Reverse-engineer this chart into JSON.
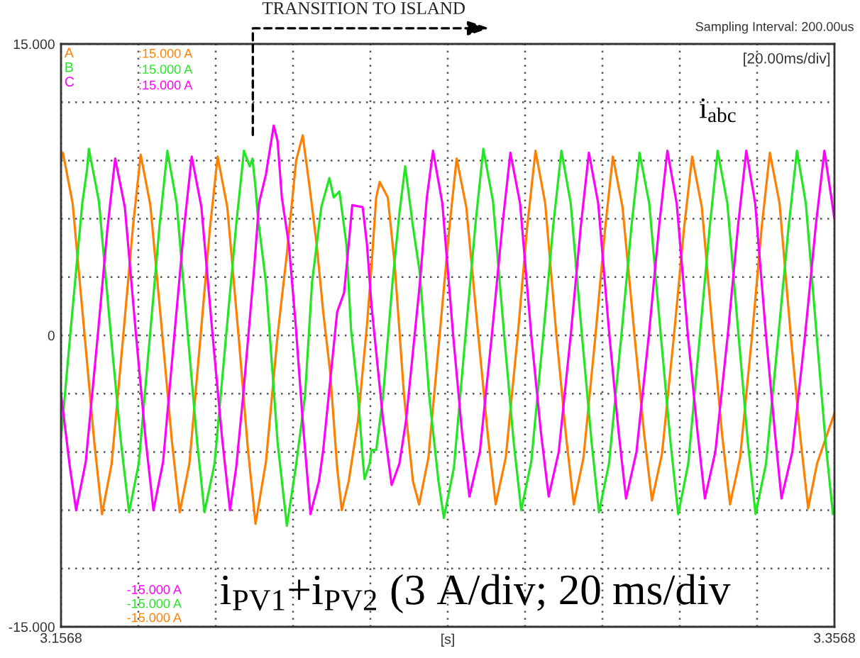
{
  "chart_data": {
    "type": "line",
    "xlabel": "[s]",
    "xlim": [
      3.1568,
      3.3568
    ],
    "xticks": [
      3.1568,
      {
        "value": 3.1768,
        "label": null
      },
      {
        "value": 3.1968,
        "label": null
      },
      {
        "value": 3.2168,
        "label": null
      },
      {
        "value": 3.2368,
        "label": null
      },
      {
        "value": 3.2568,
        "label": null
      },
      {
        "value": 3.2768,
        "label": null
      },
      {
        "value": 3.2968,
        "label": null
      },
      {
        "value": 3.3168,
        "label": null
      },
      {
        "value": 3.3368,
        "label": null
      },
      3.3568
    ],
    "ylim": [
      -15,
      15
    ],
    "yticks": [
      {
        "value": -15,
        "label": "-15.000"
      },
      {
        "value": -12,
        "label": null
      },
      {
        "value": -9,
        "label": null
      },
      {
        "value": -6,
        "label": null
      },
      {
        "value": -3,
        "label": null
      },
      0,
      {
        "value": 3,
        "label": null
      },
      {
        "value": 6,
        "label": null
      },
      {
        "value": 9,
        "label": null
      },
      {
        "value": 12,
        "label": null
      },
      {
        "value": 15,
        "label": "15.000"
      }
    ],
    "grid": true,
    "legend": "top left",
    "annotations": [
      "TRANSITION TO ISLAND",
      "Sampling Interval: 200.00us",
      "[20.00ms/div]",
      "i$_{abc}$",
      "i$_{PV1}$+i$_{PV2}$ (3 A/div; 20 ms/div",
      ":15.000 A",
      ":15.000 A",
      ":15.000 A",
      "-15.000 A",
      "-15.000 A",
      "-15.000 A"
    ],
    "series": [
      {
        "name": "A",
        "color": "#ff8000",
        "x": [
          3.1568,
          3.1573,
          3.1598,
          3.1629,
          3.1654,
          3.1674,
          3.1699,
          3.1729,
          3.1754,
          3.1774,
          3.1799,
          3.183,
          3.1855,
          3.1875,
          3.19,
          3.1929,
          3.1953,
          3.1973,
          3.1998,
          3.2027,
          3.2051,
          3.2071,
          3.2098,
          3.2128,
          3.2152,
          3.2176,
          3.2193,
          3.2211,
          3.2229,
          3.2246,
          3.2264,
          3.2282,
          3.2294,
          3.2312,
          3.2336,
          3.2359,
          3.2371,
          3.2383,
          3.2392,
          3.2413,
          3.2431,
          3.2455,
          3.2478,
          3.2494,
          3.2518,
          3.2547,
          3.2572,
          3.2591,
          3.2616,
          3.2647,
          3.2672,
          3.2692,
          3.2718,
          3.2749,
          3.2774,
          3.2795,
          3.282,
          3.2849,
          3.2874,
          3.2894,
          3.2919,
          3.295,
          3.2975,
          3.2995,
          3.302,
          3.3051,
          3.3076,
          3.3096,
          3.3122,
          3.3153,
          3.3179,
          3.32,
          3.3225,
          3.3254,
          3.3278,
          3.3298,
          3.3324,
          3.3355,
          3.338,
          3.3401,
          3.3426,
          3.3455,
          3.348,
          3.35,
          3.3523,
          3.3568
        ],
        "values": [
          9.0,
          9.4,
          6.8,
          0.0,
          -5.5,
          -9.2,
          -6.6,
          0.0,
          5.6,
          9.3,
          6.7,
          0.0,
          -5.5,
          -9.1,
          -6.6,
          0.0,
          5.5,
          9.2,
          6.6,
          0.0,
          -5.8,
          -9.7,
          -6.5,
          0.0,
          4.2,
          9.0,
          10.3,
          7.6,
          4.7,
          1.2,
          -1.9,
          -6.8,
          -9.0,
          -7.5,
          -4.4,
          0.5,
          3.6,
          7.1,
          7.9,
          7.1,
          3.6,
          -3.1,
          -7.5,
          -8.7,
          -6.3,
          0.0,
          5.5,
          9.1,
          6.6,
          0.0,
          -5.2,
          -8.7,
          -6.3,
          0.0,
          5.7,
          9.5,
          6.8,
          0.0,
          -5.2,
          -8.7,
          -6.3,
          0.0,
          5.5,
          9.2,
          6.6,
          0.0,
          -5.1,
          -8.5,
          -6.1,
          0.0,
          5.5,
          9.2,
          6.6,
          0.0,
          -5.2,
          -8.7,
          -6.3,
          0.0,
          5.6,
          9.4,
          6.8,
          0.0,
          -5.3,
          -8.9,
          -6.6,
          -4.0
        ]
      },
      {
        "name": "B",
        "color": "#22e622",
        "x": [
          3.1568,
          3.1593,
          3.1611,
          3.1623,
          3.1635,
          3.164,
          3.1666,
          3.1697,
          3.1723,
          3.1744,
          3.1769,
          3.1798,
          3.1823,
          3.1843,
          3.1867,
          3.1896,
          3.192,
          3.1939,
          3.1965,
          3.1995,
          3.2021,
          3.2041,
          3.2056,
          3.2063,
          3.2071,
          3.2077,
          3.2098,
          3.2128,
          3.2152,
          3.2175,
          3.2199,
          3.2217,
          3.2241,
          3.2262,
          3.2273,
          3.2288,
          3.2306,
          3.2318,
          3.2336,
          3.2348,
          3.2353,
          3.2366,
          3.2371,
          3.2383,
          3.2401,
          3.2425,
          3.2443,
          3.2458,
          3.2478,
          3.2496,
          3.252,
          3.2544,
          3.2558,
          3.2584,
          3.2614,
          3.264,
          3.266,
          3.2685,
          3.2714,
          3.2738,
          3.2758,
          3.2784,
          3.2815,
          3.2841,
          3.2862,
          3.2886,
          3.2915,
          3.294,
          3.2959,
          3.2985,
          3.3017,
          3.3043,
          3.3064,
          3.3089,
          3.3119,
          3.3144,
          3.3164,
          3.319,
          3.322,
          3.3246,
          3.3266,
          3.3291,
          3.332,
          3.3344,
          3.3364,
          3.3391,
          3.3423,
          3.345,
          3.3471,
          3.3494,
          3.3522,
          3.3545,
          3.3564,
          3.3568
        ],
        "values": [
          -5.3,
          0.3,
          4.2,
          6.8,
          8.5,
          9.6,
          6.9,
          0.0,
          -5.5,
          -9.1,
          -6.6,
          0.0,
          5.7,
          9.5,
          6.8,
          0.0,
          -5.5,
          -9.1,
          -6.6,
          0.0,
          5.7,
          9.5,
          8.7,
          9.1,
          7.6,
          6.1,
          2.7,
          -5.5,
          -9.8,
          -6.8,
          -3.1,
          2.7,
          6.6,
          8.1,
          7.1,
          7.4,
          4.7,
          0.3,
          -3.1,
          -6.3,
          -7.4,
          -6.6,
          -5.9,
          -5.9,
          -3.1,
          2.7,
          6.3,
          8.7,
          5.6,
          3.2,
          -3.1,
          -7.5,
          -9.4,
          -6.8,
          0.0,
          5.8,
          9.6,
          6.9,
          0.0,
          -5.4,
          -9.0,
          -6.5,
          0.0,
          5.7,
          9.5,
          6.8,
          0.0,
          -5.5,
          -9.1,
          -6.6,
          0.0,
          5.6,
          9.4,
          6.8,
          0.0,
          -5.5,
          -9.2,
          -6.6,
          0.0,
          5.7,
          9.5,
          6.8,
          0.0,
          -5.5,
          -9.2,
          -6.6,
          0.0,
          5.7,
          9.5,
          6.8,
          0.0,
          -5.5,
          -9.2,
          -8.9
        ]
      },
      {
        "name": "C",
        "color": "#ff00ff",
        "x": [
          3.1568,
          3.1591,
          3.1607,
          3.1632,
          3.1663,
          3.1688,
          3.1708,
          3.1733,
          3.1762,
          3.1787,
          3.1807,
          3.1832,
          3.1861,
          3.1886,
          3.1906,
          3.1931,
          3.196,
          3.1985,
          3.2005,
          3.2021,
          3.2039,
          3.2068,
          3.208,
          3.2098,
          3.2118,
          3.2128,
          3.2139,
          3.2157,
          3.2175,
          3.2193,
          3.2213,
          3.2235,
          3.2246,
          3.2282,
          3.23,
          3.2312,
          3.2321,
          3.2348,
          3.2359,
          3.2371,
          3.2401,
          3.2423,
          3.2443,
          3.246,
          3.2496,
          3.2514,
          3.253,
          3.2554,
          3.2582,
          3.2605,
          3.2624,
          3.2651,
          3.2682,
          3.2709,
          3.273,
          3.2755,
          3.2784,
          3.2809,
          3.2829,
          3.2855,
          3.2886,
          3.2912,
          3.2933,
          3.2957,
          3.2986,
          3.301,
          3.3029,
          3.3056,
          3.3088,
          3.3115,
          3.3136,
          3.316,
          3.3189,
          3.3214,
          3.3233,
          3.326,
          3.3292,
          3.3319,
          3.334,
          3.3363,
          3.3391,
          3.3414,
          3.3431,
          3.3459,
          3.3492,
          3.352,
          3.3542,
          3.3568
        ],
        "values": [
          -3.0,
          -6.8,
          -9.0,
          -6.5,
          0.0,
          5.5,
          9.1,
          6.6,
          0.0,
          -5.4,
          -9.0,
          -6.5,
          0.0,
          5.5,
          9.2,
          6.6,
          0.0,
          -5.4,
          -9.0,
          -6.8,
          -3.1,
          3.6,
          6.8,
          8.3,
          10.8,
          10.0,
          7.1,
          4.7,
          0.5,
          -4.4,
          -9.2,
          -7.5,
          -5.9,
          1.2,
          2.2,
          4.7,
          6.7,
          6.6,
          4.7,
          1.5,
          -4.4,
          -7.7,
          -6.6,
          -4.4,
          2.7,
          7.1,
          9.5,
          6.8,
          0.0,
          -5.0,
          -8.3,
          -6.0,
          0.0,
          5.6,
          9.4,
          6.8,
          0.0,
          -5.0,
          -8.3,
          -6.0,
          0.0,
          5.6,
          9.4,
          6.8,
          0.0,
          -5.0,
          -8.4,
          -6.0,
          0.0,
          5.7,
          9.5,
          6.8,
          0.0,
          -5.0,
          -8.4,
          -6.0,
          0.0,
          5.7,
          9.5,
          6.8,
          0.0,
          -5.0,
          -8.4,
          -6.0,
          0.0,
          5.7,
          9.5,
          6.0
        ]
      }
    ]
  }
}
